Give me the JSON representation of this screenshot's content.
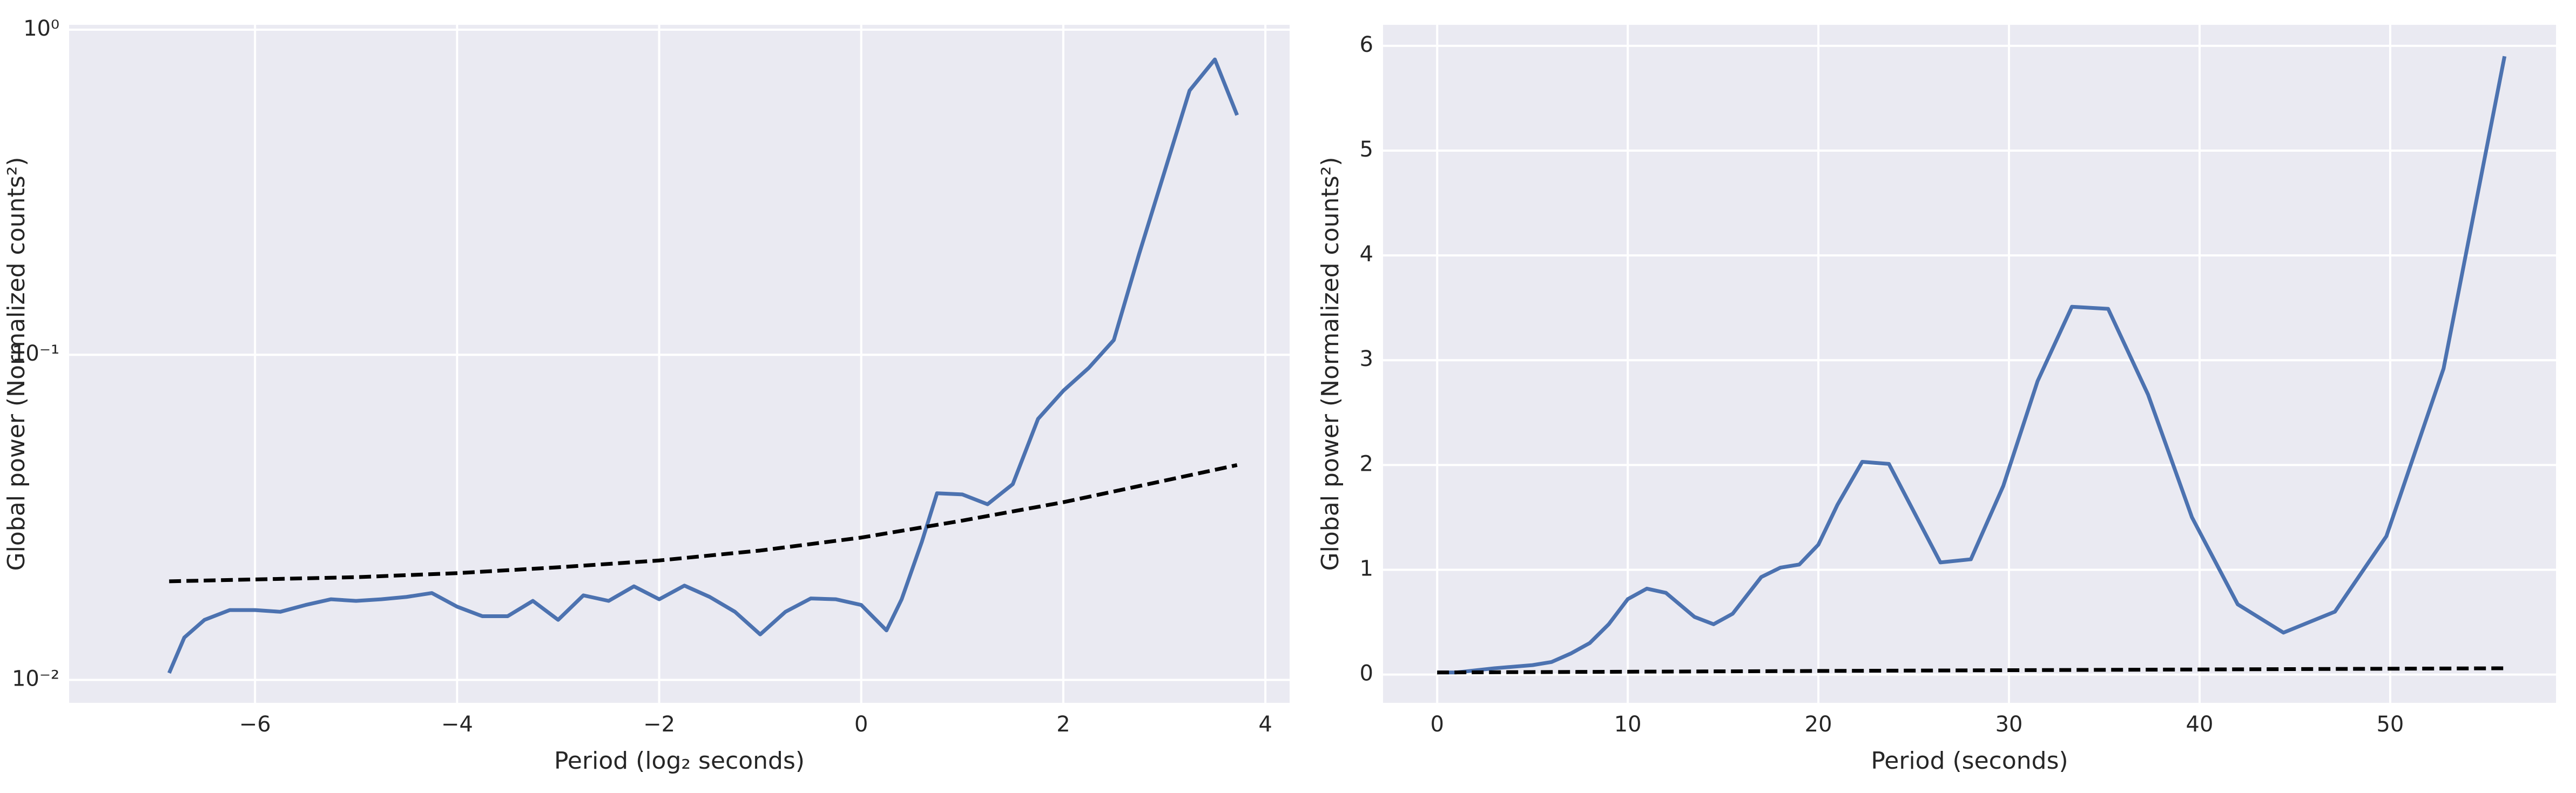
{
  "chart_data": [
    {
      "type": "line",
      "xlabel": "Period (log₂ seconds)",
      "ylabel": "Global power (Normalized counts²)",
      "ylog": true,
      "grid": true,
      "xlim": [
        -7.84,
        4.24
      ],
      "ylim": [
        0.0085,
        1.035
      ],
      "xticks": [
        {
          "value": -6,
          "label": "−6"
        },
        {
          "value": -4,
          "label": "−4"
        },
        {
          "value": -2,
          "label": "−2"
        },
        0,
        2,
        4
      ],
      "yticks": [
        {
          "value": 0.01,
          "label": "10⁻²"
        },
        {
          "value": 0.1,
          "label": "10⁻¹"
        },
        {
          "value": 1,
          "label": "10⁰"
        }
      ],
      "series": [
        {
          "color": "#4c72b0",
          "dash": false,
          "x": [
            -6.85,
            -6.7,
            -6.5,
            -6.25,
            -6,
            -5.75,
            -5.5,
            -5.25,
            -5,
            -4.75,
            -4.5,
            -4.25,
            -4,
            -3.75,
            -3.5,
            -3.25,
            -3,
            -2.75,
            -2.5,
            -2.25,
            -2,
            -1.75,
            -1.5,
            -1.25,
            -1,
            -0.75,
            -0.5,
            -0.25,
            0,
            0.25,
            0.4,
            0.6,
            0.75,
            1,
            1.25,
            1.5,
            1.75,
            2,
            2.25,
            2.5,
            2.75,
            3,
            3.25,
            3.5,
            3.72
          ],
          "values": [
            0.0105,
            0.0135,
            0.0153,
            0.0164,
            0.0164,
            0.0162,
            0.017,
            0.0177,
            0.0175,
            0.0177,
            0.018,
            0.0185,
            0.0168,
            0.0157,
            0.0157,
            0.0175,
            0.0153,
            0.0182,
            0.0175,
            0.0194,
            0.0177,
            0.0195,
            0.018,
            0.0162,
            0.0138,
            0.0162,
            0.0178,
            0.0177,
            0.017,
            0.0142,
            0.0177,
            0.0266,
            0.0375,
            0.0372,
            0.0347,
            0.04,
            0.0635,
            0.0775,
            0.091,
            0.111,
            0.204,
            0.364,
            0.65,
            0.81,
            0.546
          ]
        },
        {
          "color": "#000000",
          "dash": true,
          "x": [
            -6.85,
            -5,
            -4,
            -3,
            -2,
            -1,
            0,
            1,
            2,
            3,
            3.72
          ],
          "values": [
            0.0201,
            0.0207,
            0.0213,
            0.0222,
            0.0233,
            0.025,
            0.0274,
            0.0309,
            0.0352,
            0.041,
            0.0458
          ]
        }
      ]
    },
    {
      "type": "line",
      "xlabel": "Period (seconds)",
      "ylabel": "Global power (Normalized counts²)",
      "ylog": false,
      "grid": true,
      "xlim": [
        -2.84,
        58.7
      ],
      "ylim": [
        -0.27,
        6.2
      ],
      "xticks": [
        0,
        10,
        20,
        30,
        40,
        50
      ],
      "yticks": [
        0,
        1,
        2,
        3,
        4,
        5,
        6
      ],
      "series": [
        {
          "color": "#4c72b0",
          "dash": false,
          "x": [
            0,
            1,
            3,
            5,
            6,
            7,
            8,
            9,
            10,
            11,
            12,
            13.5,
            14.5,
            15.5,
            17,
            18,
            19,
            20,
            21,
            22.3,
            23.7,
            26.4,
            28,
            29.7,
            31.5,
            33.3,
            35.2,
            37.3,
            39.6,
            42,
            44.4,
            47.1,
            49.8,
            52.8,
            56
          ],
          "values": [
            0.02,
            0.02,
            0.06,
            0.09,
            0.12,
            0.2,
            0.3,
            0.48,
            0.72,
            0.82,
            0.78,
            0.55,
            0.48,
            0.58,
            0.93,
            1.02,
            1.05,
            1.24,
            1.62,
            2.03,
            2.01,
            1.07,
            1.1,
            1.8,
            2.8,
            3.51,
            3.49,
            2.67,
            1.5,
            0.67,
            0.4,
            0.6,
            1.32,
            2.92,
            5.9
          ]
        },
        {
          "color": "#000000",
          "dash": true,
          "x": [
            0,
            14,
            28,
            42,
            56
          ],
          "values": [
            0.02,
            0.03,
            0.04,
            0.05,
            0.06
          ]
        }
      ]
    }
  ]
}
